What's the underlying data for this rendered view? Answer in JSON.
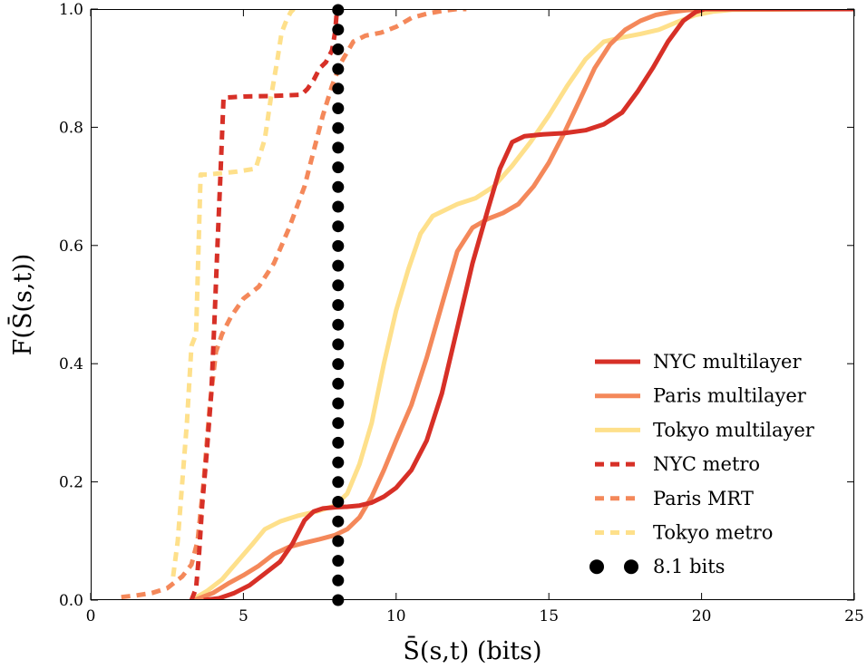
{
  "chart_data": {
    "type": "line",
    "xlabel": "S̄(s,t) (bits)",
    "ylabel": "F(S̄(s,t))",
    "xlim": [
      0,
      25
    ],
    "ylim": [
      0.0,
      1.0
    ],
    "xticks": [
      0,
      5,
      10,
      15,
      20,
      25
    ],
    "yticks": [
      0.0,
      0.2,
      0.4,
      0.6,
      0.8,
      1.0
    ],
    "ytick_labels": [
      "0.0",
      "0.2",
      "0.4",
      "0.6",
      "0.8",
      "1.0"
    ],
    "grid": false,
    "legend_position": "lower right",
    "series": [
      {
        "name": "NYC multilayer",
        "color": "#d73027",
        "style": "solid",
        "x": [
          3.7,
          4.2,
          4.7,
          5.2,
          5.7,
          6.2,
          6.6,
          7.0,
          7.3,
          7.6,
          8.0,
          8.4,
          8.8,
          9.2,
          9.6,
          10.0,
          10.5,
          11.0,
          11.5,
          12.0,
          12.5,
          13.0,
          13.4,
          13.8,
          14.2,
          14.8,
          15.5,
          16.2,
          16.8,
          17.4,
          17.9,
          18.4,
          18.9,
          19.4,
          19.8,
          20.1,
          20.5,
          25.0
        ],
        "y": [
          0.0,
          0.003,
          0.012,
          0.025,
          0.045,
          0.065,
          0.095,
          0.135,
          0.15,
          0.155,
          0.157,
          0.158,
          0.16,
          0.165,
          0.175,
          0.19,
          0.22,
          0.27,
          0.35,
          0.46,
          0.57,
          0.66,
          0.73,
          0.775,
          0.785,
          0.788,
          0.79,
          0.795,
          0.805,
          0.825,
          0.86,
          0.9,
          0.945,
          0.98,
          0.995,
          1.0,
          1.0,
          1.0
        ]
      },
      {
        "name": "Paris multilayer",
        "color": "#f4885a",
        "style": "solid",
        "x": [
          3.4,
          4.0,
          4.5,
          5.0,
          5.5,
          6.0,
          6.5,
          7.0,
          7.5,
          8.0,
          8.4,
          8.8,
          9.2,
          9.6,
          10.0,
          10.5,
          11.0,
          11.5,
          12.0,
          12.5,
          13.0,
          13.5,
          14.0,
          14.5,
          15.0,
          15.5,
          16.0,
          16.5,
          17.0,
          17.5,
          18.0,
          18.5,
          19.0,
          19.5,
          20.0,
          25.0
        ],
        "y": [
          0.0,
          0.012,
          0.028,
          0.042,
          0.058,
          0.078,
          0.09,
          0.097,
          0.103,
          0.11,
          0.12,
          0.14,
          0.175,
          0.22,
          0.27,
          0.33,
          0.41,
          0.5,
          0.59,
          0.63,
          0.645,
          0.655,
          0.67,
          0.7,
          0.74,
          0.79,
          0.845,
          0.9,
          0.94,
          0.965,
          0.98,
          0.99,
          0.995,
          0.998,
          1.0,
          1.0
        ]
      },
      {
        "name": "Tokyo multilayer",
        "color": "#fee08b",
        "style": "solid",
        "x": [
          3.3,
          3.8,
          4.3,
          4.8,
          5.3,
          5.7,
          6.2,
          6.8,
          7.4,
          8.0,
          8.4,
          8.8,
          9.2,
          9.6,
          10.0,
          10.4,
          10.8,
          11.2,
          11.6,
          12.0,
          12.6,
          13.2,
          13.8,
          14.4,
          15.0,
          15.6,
          16.2,
          16.8,
          17.4,
          18.0,
          18.6,
          19.2,
          19.8,
          20.4,
          21.0,
          25.0
        ],
        "y": [
          0.0,
          0.015,
          0.035,
          0.065,
          0.095,
          0.12,
          0.133,
          0.143,
          0.15,
          0.16,
          0.18,
          0.23,
          0.3,
          0.4,
          0.49,
          0.56,
          0.62,
          0.65,
          0.66,
          0.67,
          0.68,
          0.7,
          0.735,
          0.775,
          0.82,
          0.87,
          0.915,
          0.945,
          0.952,
          0.958,
          0.965,
          0.978,
          0.99,
          0.996,
          0.999,
          1.0
        ]
      },
      {
        "name": "NYC metro",
        "color": "#d73027",
        "style": "dashed",
        "x": [
          3.3,
          3.45,
          3.55,
          3.65,
          3.8,
          3.95,
          4.05,
          4.15,
          4.25,
          4.35,
          5.0,
          6.0,
          6.9,
          7.1,
          7.3,
          7.5,
          7.7,
          7.9,
          8.0,
          8.05,
          8.1
        ],
        "y": [
          0.0,
          0.02,
          0.08,
          0.16,
          0.25,
          0.35,
          0.47,
          0.6,
          0.72,
          0.85,
          0.852,
          0.853,
          0.855,
          0.865,
          0.88,
          0.9,
          0.91,
          0.93,
          0.96,
          0.99,
          1.0
        ]
      },
      {
        "name": "Paris MRT",
        "color": "#f4885a",
        "style": "dashed",
        "x": [
          1.0,
          1.5,
          2.0,
          2.5,
          3.0,
          3.3,
          3.5,
          3.7,
          3.9,
          4.1,
          4.3,
          4.6,
          5.0,
          5.5,
          6.0,
          6.5,
          7.0,
          7.3,
          7.6,
          7.9,
          8.2,
          8.6,
          9.0,
          9.5,
          10.0,
          10.5,
          11.0,
          11.5,
          12.0,
          12.3
        ],
        "y": [
          0.005,
          0.008,
          0.012,
          0.02,
          0.04,
          0.06,
          0.1,
          0.2,
          0.33,
          0.42,
          0.45,
          0.48,
          0.51,
          0.53,
          0.57,
          0.63,
          0.7,
          0.76,
          0.82,
          0.87,
          0.91,
          0.945,
          0.955,
          0.96,
          0.97,
          0.985,
          0.992,
          0.997,
          1.0,
          1.0
        ]
      },
      {
        "name": "Tokyo metro",
        "color": "#fee08b",
        "style": "dashed",
        "x": [
          2.7,
          2.85,
          3.0,
          3.15,
          3.3,
          3.45,
          3.6,
          3.8,
          4.2,
          4.8,
          5.4,
          5.7,
          5.9,
          6.1,
          6.25,
          6.4,
          6.55,
          6.65
        ],
        "y": [
          0.04,
          0.1,
          0.2,
          0.3,
          0.43,
          0.45,
          0.72,
          0.72,
          0.722,
          0.725,
          0.73,
          0.78,
          0.85,
          0.91,
          0.96,
          0.98,
          0.995,
          1.0
        ]
      }
    ],
    "reference_line": {
      "name": "8.1 bits",
      "x": 8.1,
      "color": "#000000",
      "style": "dotted"
    }
  }
}
